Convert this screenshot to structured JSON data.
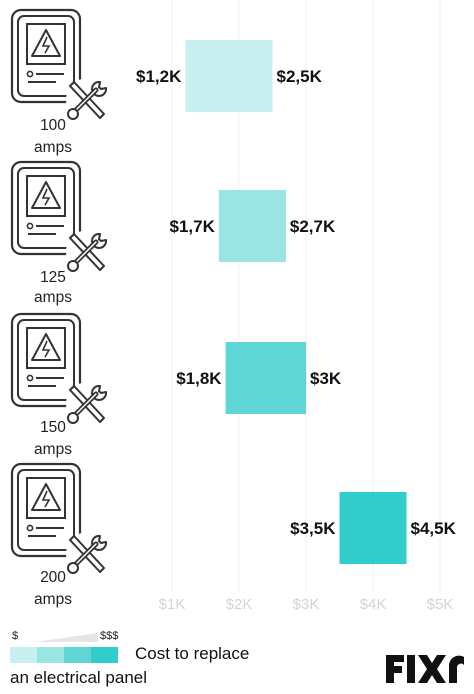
{
  "chart_data": {
    "type": "bar",
    "orientation": "horizontal-range",
    "categories": [
      {
        "amps": "100",
        "unit": "amps",
        "low": 1.2,
        "high": 2.5,
        "low_label": "$1,2K",
        "high_label": "$2,5K",
        "color": "#c9f0f0"
      },
      {
        "amps": "125",
        "unit": "amps",
        "low": 1.7,
        "high": 2.7,
        "low_label": "$1,7K",
        "high_label": "$2,7K",
        "color": "#9be4e4"
      },
      {
        "amps": "150",
        "unit": "amps",
        "low": 1.8,
        "high": 3.0,
        "low_label": "$1,8K",
        "high_label": "$3K",
        "color": "#5fd6d6"
      },
      {
        "amps": "200",
        "unit": "amps",
        "low": 3.5,
        "high": 4.5,
        "low_label": "$3,5K",
        "high_label": "$4,5K",
        "color": "#33cccc"
      }
    ],
    "x_ticks": [
      {
        "value": 1,
        "label": "$1K"
      },
      {
        "value": 2,
        "label": "$2K"
      },
      {
        "value": 3,
        "label": "$3K"
      },
      {
        "value": 4,
        "label": "$4K"
      },
      {
        "value": 5,
        "label": "$5K"
      }
    ],
    "xlim": [
      1,
      5
    ],
    "grid": true,
    "icon": "electrical-panel-with-tools-icon"
  },
  "legend": {
    "low_symbol": "$",
    "high_symbol": "$$$",
    "text_line1": "Cost to replace",
    "text_line2": "an electrical panel",
    "swatches": [
      "#c9f0f0",
      "#9be4e4",
      "#5fd6d6",
      "#33cccc"
    ]
  },
  "brand": {
    "name": "FIXR",
    "color": "#111111",
    "accent": "#33cccc"
  }
}
